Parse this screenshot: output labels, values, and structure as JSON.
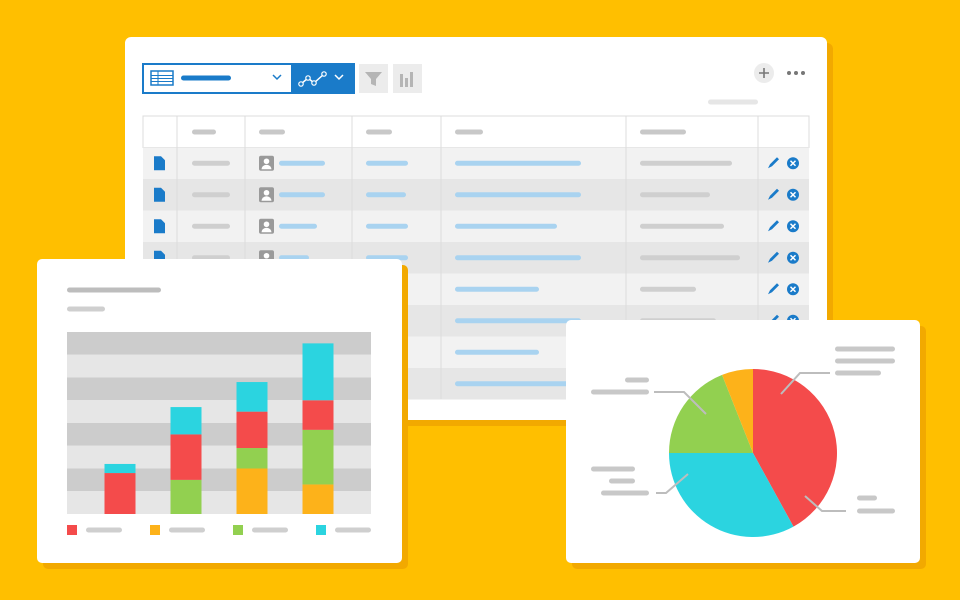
{
  "chart_data": [
    {
      "type": "bar",
      "stacked": true,
      "categories": [
        null,
        null,
        null,
        null
      ],
      "series": [
        {
          "color": "#f44b4b",
          "values": [
            1.8,
            2.0,
            1.6,
            1.3
          ]
        },
        {
          "color": "#fdb21a",
          "values": [
            0,
            0,
            2.0,
            1.3
          ]
        },
        {
          "color": "#92d050",
          "values": [
            0,
            1.5,
            0.9,
            2.4
          ]
        },
        {
          "color": "#2bd4e0",
          "values": [
            0.4,
            1.2,
            1.3,
            2.5
          ]
        }
      ],
      "ylim": [
        0,
        8
      ]
    },
    {
      "type": "pie",
      "values": [
        42,
        33,
        19,
        6
      ],
      "colors": [
        "#f44b4b",
        "#2bd4e0",
        "#92d050",
        "#fdb21a"
      ]
    }
  ]
}
